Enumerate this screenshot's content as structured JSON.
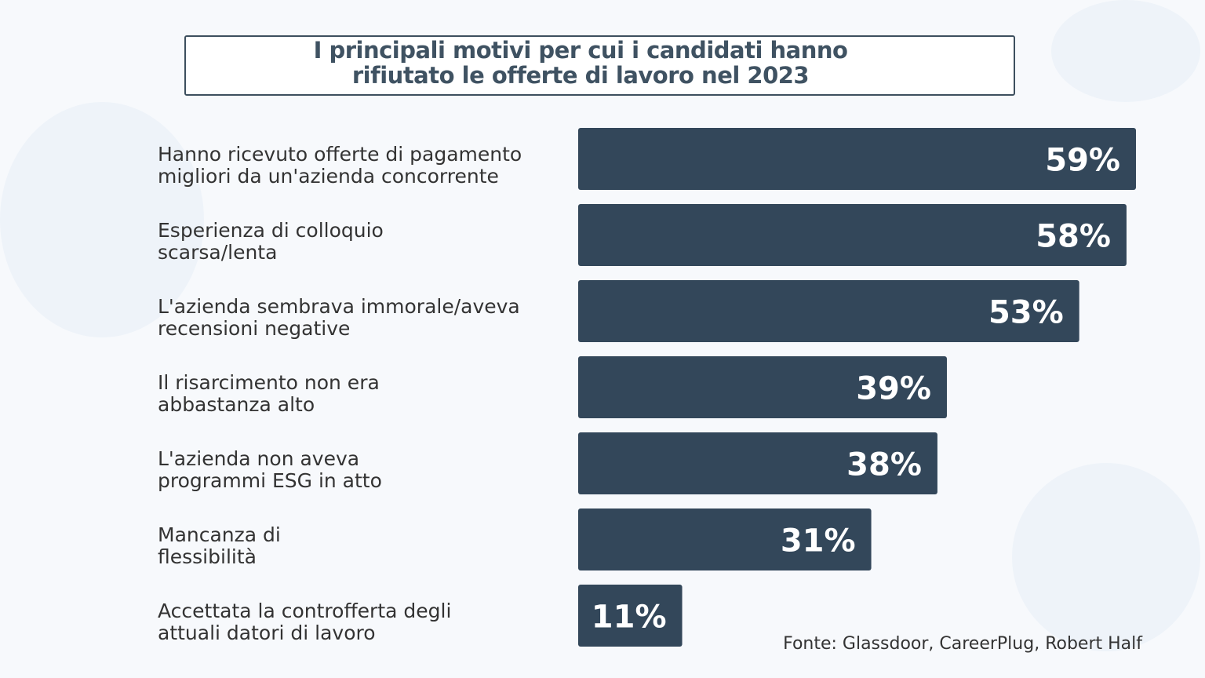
{
  "chart_data": {
    "type": "bar",
    "orientation": "horizontal",
    "title": "I principali motivi per cui i candidati hanno rifiutato le offerte di lavoro nel 2023",
    "title_lines": [
      "I principali motivi per cui i candidati hanno",
      "rifiutato le offerte di lavoro nel 2023"
    ],
    "categories": [
      [
        "Hanno ricevuto offerte di pagamento",
        "migliori da un'azienda concorrente"
      ],
      [
        "Esperienza di colloquio",
        "scarsa/lenta"
      ],
      [
        "L'azienda sembrava immorale/aveva",
        "recensioni negative"
      ],
      [
        "Il risarcimento non era",
        "abbastanza alto"
      ],
      [
        "L'azienda non aveva",
        "programmi ESG in atto"
      ],
      [
        "Mancanza di",
        "flessibilità"
      ],
      [
        "Accettata la controfferta degli",
        "attuali datori di lavoro"
      ]
    ],
    "values": [
      59,
      58,
      53,
      39,
      38,
      31,
      11
    ],
    "data_labels": [
      "59%",
      "58%",
      "53%",
      "39%",
      "38%",
      "31%",
      "11%"
    ],
    "unit": "%",
    "xlim": [
      0,
      59
    ],
    "grid": false,
    "bar_color": "#33475a",
    "label_color": "#ffffff"
  },
  "source": "Fonte: Glassdoor, CareerPlug, Robert Half"
}
